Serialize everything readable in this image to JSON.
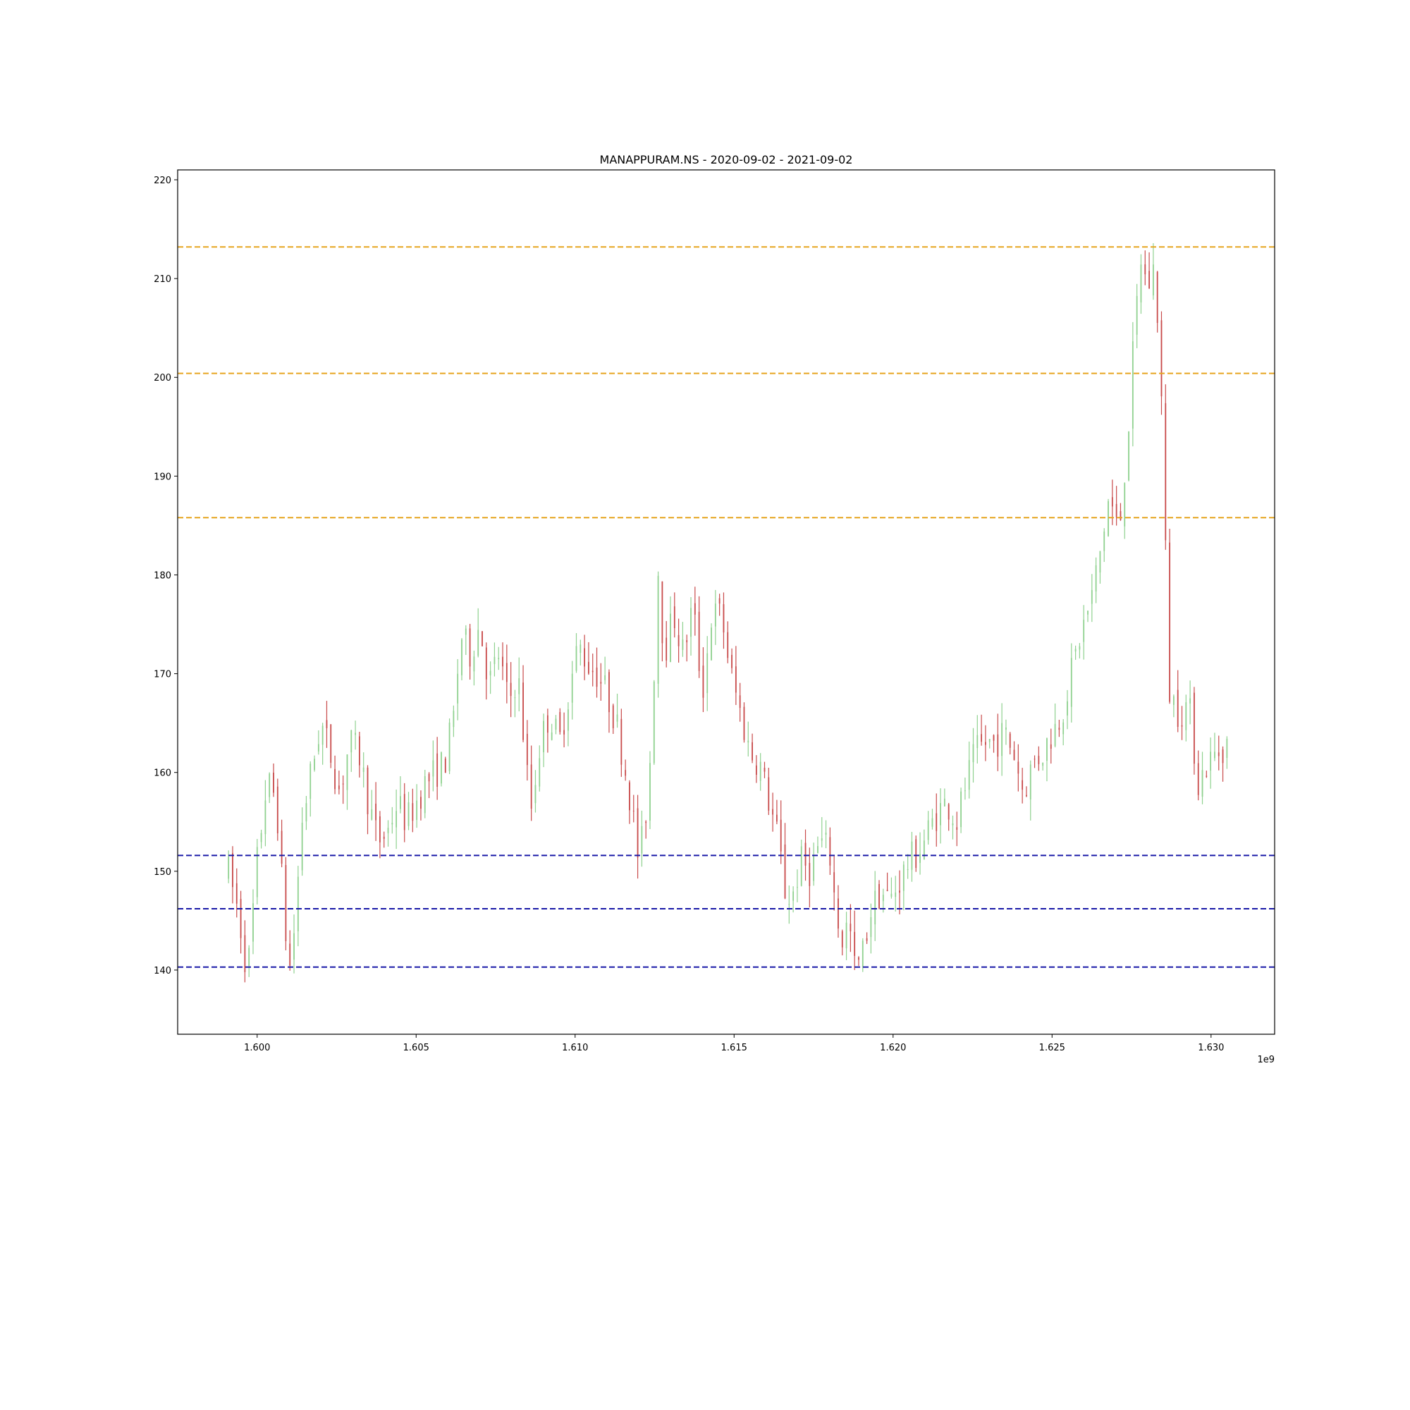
{
  "chart_data": {
    "type": "candlestick",
    "title": "MANAPPURAM.NS - 2020-09-02 - 2021-09-02",
    "xlabel": "",
    "ylabel": "",
    "x_offset_label": "1e9",
    "xlim": [
      1.5975,
      1.632
    ],
    "ylim": [
      133.5,
      221
    ],
    "x_ticks": [
      1.6,
      1.605,
      1.61,
      1.615,
      1.62,
      1.625,
      1.63
    ],
    "x_tick_labels": [
      "1.600",
      "1.605",
      "1.610",
      "1.615",
      "1.620",
      "1.625",
      "1.630"
    ],
    "y_ticks": [
      140,
      150,
      160,
      170,
      180,
      190,
      200,
      210,
      220
    ],
    "y_tick_labels": [
      "140",
      "150",
      "160",
      "170",
      "180",
      "190",
      "200",
      "210",
      "220"
    ],
    "grid": false,
    "up_color": "#8fd18f",
    "down_color": "#c84a4a",
    "resistance_lines": {
      "color": "#e6a520",
      "values": [
        213.2,
        200.4,
        185.8
      ]
    },
    "support_lines": {
      "color": "#1a1aa8",
      "values": [
        151.6,
        146.2,
        140.3
      ]
    },
    "price_path": [
      [
        1.5991,
        150.0
      ],
      [
        1.5994,
        146.0
      ],
      [
        1.5997,
        139.5
      ],
      [
        1.6,
        151.0
      ],
      [
        1.6003,
        159.0
      ],
      [
        1.6006,
        157.5
      ],
      [
        1.6008,
        148.0
      ],
      [
        1.601,
        139.5
      ],
      [
        1.6012,
        145.0
      ],
      [
        1.6014,
        155.0
      ],
      [
        1.6017,
        160.0
      ],
      [
        1.602,
        165.0
      ],
      [
        1.6023,
        162.0
      ],
      [
        1.6026,
        158.0
      ],
      [
        1.6029,
        163.0
      ],
      [
        1.6032,
        162.0
      ],
      [
        1.6035,
        157.0
      ],
      [
        1.6038,
        153.0
      ],
      [
        1.6041,
        154.0
      ],
      [
        1.6044,
        157.0
      ],
      [
        1.6047,
        155.0
      ],
      [
        1.605,
        157.0
      ],
      [
        1.6053,
        159.0
      ],
      [
        1.6056,
        160.0
      ],
      [
        1.6059,
        161.0
      ],
      [
        1.6062,
        166.0
      ],
      [
        1.6064,
        174.0
      ],
      [
        1.6067,
        172.0
      ],
      [
        1.607,
        175.0
      ],
      [
        1.6073,
        169.0
      ],
      [
        1.6076,
        172.0
      ],
      [
        1.6079,
        167.0
      ],
      [
        1.6082,
        170.0
      ],
      [
        1.6084,
        163.0
      ],
      [
        1.6086,
        156.0
      ],
      [
        1.6089,
        163.0
      ],
      [
        1.6092,
        166.0
      ],
      [
        1.6095,
        163.0
      ],
      [
        1.6098,
        168.0
      ],
      [
        1.6101,
        173.0
      ],
      [
        1.6104,
        171.0
      ],
      [
        1.6107,
        170.0
      ],
      [
        1.611,
        168.0
      ],
      [
        1.6113,
        165.0
      ],
      [
        1.6116,
        160.0
      ],
      [
        1.6118,
        156.0
      ],
      [
        1.612,
        151.0
      ],
      [
        1.6122,
        155.0
      ],
      [
        1.6124,
        163.0
      ],
      [
        1.6126,
        181.0
      ],
      [
        1.6128,
        172.0
      ],
      [
        1.6131,
        176.0
      ],
      [
        1.6134,
        172.0
      ],
      [
        1.6137,
        177.0
      ],
      [
        1.614,
        168.0
      ],
      [
        1.6143,
        176.0
      ],
      [
        1.6146,
        176.0
      ],
      [
        1.6149,
        170.0
      ],
      [
        1.6152,
        166.0
      ],
      [
        1.6155,
        162.0
      ],
      [
        1.6158,
        161.0
      ],
      [
        1.6161,
        157.0
      ],
      [
        1.6164,
        153.0
      ],
      [
        1.6166,
        148.0
      ],
      [
        1.6168,
        147.0
      ],
      [
        1.6171,
        151.0
      ],
      [
        1.6174,
        150.0
      ],
      [
        1.6177,
        153.0
      ],
      [
        1.618,
        152.0
      ],
      [
        1.6182,
        146.0
      ],
      [
        1.6184,
        143.0
      ],
      [
        1.6186,
        145.0
      ],
      [
        1.6188,
        140.0
      ],
      [
        1.619,
        141.0
      ],
      [
        1.6193,
        146.0
      ],
      [
        1.6196,
        148.0
      ],
      [
        1.6199,
        147.0
      ],
      [
        1.6202,
        149.0
      ],
      [
        1.6205,
        151.0
      ],
      [
        1.6208,
        152.0
      ],
      [
        1.6211,
        154.0
      ],
      [
        1.6214,
        156.0
      ],
      [
        1.6217,
        157.0
      ],
      [
        1.622,
        155.0
      ],
      [
        1.6223,
        159.0
      ],
      [
        1.6226,
        162.0
      ],
      [
        1.6229,
        163.0
      ],
      [
        1.6232,
        163.0
      ],
      [
        1.6235,
        164.0
      ],
      [
        1.6238,
        162.0
      ],
      [
        1.6241,
        158.0
      ],
      [
        1.6244,
        161.0
      ],
      [
        1.6247,
        162.0
      ],
      [
        1.625,
        164.0
      ],
      [
        1.6253,
        166.0
      ],
      [
        1.6256,
        170.0
      ],
      [
        1.6259,
        174.0
      ],
      [
        1.6262,
        177.0
      ],
      [
        1.6265,
        182.0
      ],
      [
        1.6268,
        188.0
      ],
      [
        1.6271,
        184.0
      ],
      [
        1.6274,
        195.0
      ],
      [
        1.6276,
        205.0
      ],
      [
        1.6278,
        212.0
      ],
      [
        1.628,
        209.0
      ],
      [
        1.6282,
        211.0
      ],
      [
        1.6284,
        203.0
      ],
      [
        1.6285,
        190.0
      ],
      [
        1.6287,
        168.0
      ],
      [
        1.629,
        166.0
      ],
      [
        1.6293,
        167.0
      ],
      [
        1.6296,
        159.0
      ],
      [
        1.6299,
        161.0
      ],
      [
        1.6302,
        162.0
      ],
      [
        1.6305,
        163.0
      ]
    ]
  }
}
